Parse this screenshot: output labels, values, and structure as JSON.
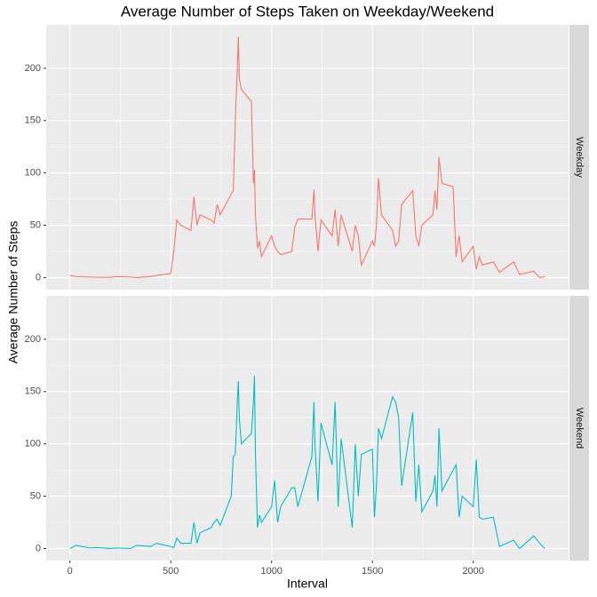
{
  "chart_data": {
    "type": "line",
    "title": "Average Number of Steps Taken on Weekday/Weekend",
    "xlabel": "Interval",
    "ylabel": "Average Number of Steps",
    "facet": true,
    "grid": true,
    "x": [
      0,
      30,
      100,
      130,
      200,
      230,
      300,
      330,
      400,
      430,
      500,
      515,
      530,
      550,
      600,
      615,
      630,
      645,
      700,
      715,
      730,
      745,
      800,
      810,
      820,
      830,
      835,
      840,
      850,
      900,
      910,
      915,
      920,
      930,
      940,
      950,
      1000,
      1015,
      1030,
      1045,
      1100,
      1115,
      1130,
      1200,
      1210,
      1215,
      1230,
      1245,
      1300,
      1315,
      1330,
      1345,
      1400,
      1415,
      1430,
      1445,
      1500,
      1510,
      1520,
      1530,
      1545,
      1600,
      1615,
      1630,
      1645,
      1700,
      1715,
      1730,
      1745,
      1800,
      1810,
      1820,
      1830,
      1845,
      1900,
      1915,
      1930,
      1945,
      2000,
      2015,
      2030,
      2045,
      2100,
      2130,
      2200,
      2230,
      2300,
      2330,
      2355
    ],
    "series": [
      {
        "name": "Weekday",
        "color": "#F8766D",
        "values": [
          2,
          1,
          0.5,
          0.3,
          0.2,
          1,
          0.5,
          0,
          1,
          2,
          4,
          25,
          55,
          50,
          45,
          77,
          50,
          60,
          55,
          52,
          70,
          60,
          80,
          83,
          150,
          200,
          230,
          190,
          180,
          168,
          90,
          103,
          60,
          28,
          35,
          20,
          40,
          30,
          25,
          22,
          25,
          48,
          56,
          56,
          84,
          60,
          25,
          55,
          40,
          65,
          30,
          60,
          25,
          50,
          40,
          12,
          35,
          30,
          50,
          95,
          60,
          45,
          30,
          35,
          70,
          83,
          40,
          30,
          50,
          60,
          83,
          65,
          115,
          90,
          87,
          20,
          40,
          15,
          30,
          8,
          20,
          12,
          15,
          5,
          15,
          3,
          6,
          0,
          1
        ]
      },
      {
        "name": "Weekend",
        "color": "#00BFC4",
        "values": [
          0,
          3,
          0.5,
          1,
          0,
          0.5,
          0,
          3,
          2,
          5,
          2,
          1,
          10,
          5,
          5,
          25,
          5,
          15,
          20,
          25,
          28,
          22,
          50,
          88,
          90,
          140,
          160,
          125,
          100,
          110,
          140,
          165,
          90,
          20,
          32,
          25,
          40,
          65,
          25,
          40,
          58,
          58,
          40,
          88,
          140,
          100,
          45,
          120,
          80,
          140,
          40,
          105,
          20,
          100,
          50,
          90,
          95,
          30,
          60,
          115,
          105,
          145,
          140,
          125,
          60,
          130,
          45,
          80,
          35,
          55,
          70,
          40,
          115,
          55,
          75,
          80,
          30,
          50,
          40,
          85,
          30,
          28,
          30,
          2,
          8,
          0,
          12,
          5,
          0
        ]
      }
    ],
    "xlim": [
      -117.75,
      2472.75
    ],
    "xticks": [
      0,
      500,
      1000,
      1500,
      2000
    ],
    "ylim": [
      -11.5,
      241.5
    ],
    "yticks": [
      0,
      50,
      100,
      150,
      200
    ]
  }
}
